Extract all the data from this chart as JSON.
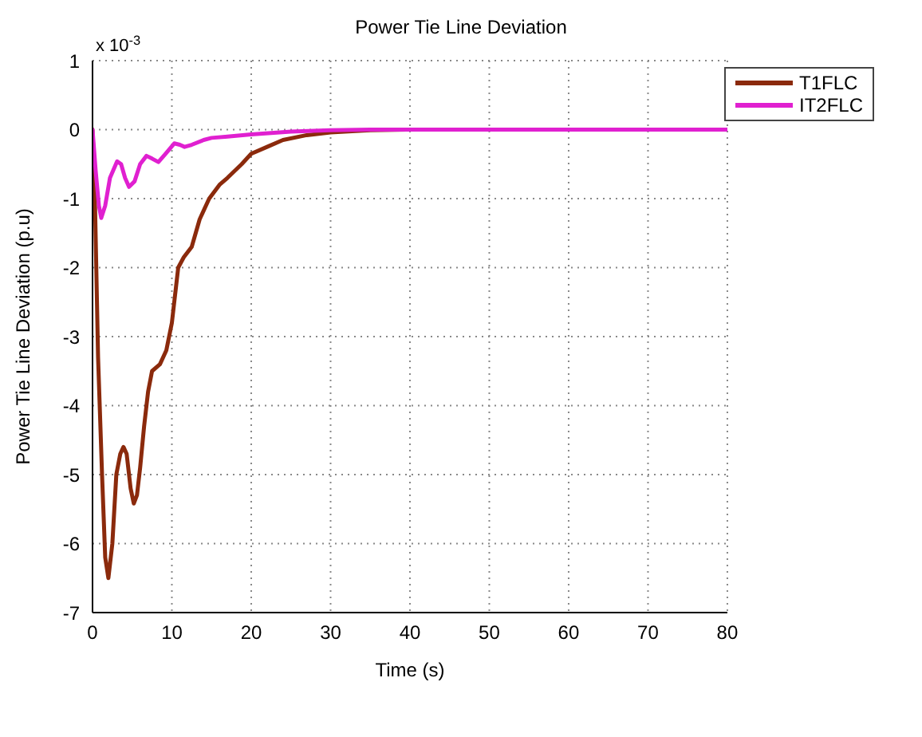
{
  "chart_data": {
    "type": "line",
    "title": "Power Tie Line Deviation",
    "xlabel": "Time (s)",
    "ylabel": "Power Tie Line Deviation (p.u)",
    "annotations": [
      "x 10$^{-3}$"
    ],
    "xlim": [
      0,
      80
    ],
    "xticks": [
      0,
      10,
      20,
      30,
      40,
      50,
      60,
      70,
      80
    ],
    "ylim": [
      -7,
      1
    ],
    "yticks": [
      -7,
      -6,
      -5,
      -4,
      -3,
      -2,
      -1,
      0,
      1
    ],
    "grid": true,
    "legend": "top right",
    "line_style": "solid",
    "marker": "none",
    "series": [
      {
        "name": "T1FLC",
        "color": "#8b2a0c",
        "x": [
          0,
          0.3,
          0.7,
          1.2,
          1.6,
          2,
          2.5,
          3,
          3.5,
          3.9,
          4.3,
          4.8,
          5.2,
          5.6,
          6,
          6.5,
          7,
          7.5,
          8.5,
          9.3,
          10,
          10.8,
          11.5,
          12.5,
          13.5,
          14.7,
          16,
          17,
          18.8,
          20,
          22,
          24,
          27,
          30,
          35,
          40,
          80
        ],
        "values": [
          0,
          -1,
          -3.3,
          -5,
          -6.2,
          -6.5,
          -6,
          -5,
          -4.7,
          -4.6,
          -4.7,
          -5.2,
          -5.42,
          -5.3,
          -4.9,
          -4.3,
          -3.8,
          -3.5,
          -3.4,
          -3.2,
          -2.8,
          -2.0,
          -1.85,
          -1.7,
          -1.3,
          -1.0,
          -0.8,
          -0.7,
          -0.5,
          -0.35,
          -0.25,
          -0.15,
          -0.08,
          -0.04,
          -0.01,
          0,
          0
        ]
      },
      {
        "name": "IT2FLC",
        "color": "#e020d0",
        "x": [
          0,
          0.4,
          0.8,
          1.1,
          1.6,
          2.2,
          3.1,
          3.6,
          4.1,
          4.6,
          5.3,
          6,
          6.8,
          7.5,
          8.3,
          9.2,
          10.3,
          11,
          11.6,
          12.5,
          14,
          15,
          17,
          20,
          25,
          30,
          35,
          80
        ],
        "values": [
          0,
          -0.6,
          -1.1,
          -1.28,
          -1.1,
          -0.7,
          -0.46,
          -0.5,
          -0.7,
          -0.83,
          -0.75,
          -0.5,
          -0.38,
          -0.42,
          -0.47,
          -0.35,
          -0.2,
          -0.22,
          -0.25,
          -0.22,
          -0.15,
          -0.12,
          -0.1,
          -0.07,
          -0.03,
          -0.01,
          0,
          0
        ]
      }
    ]
  }
}
